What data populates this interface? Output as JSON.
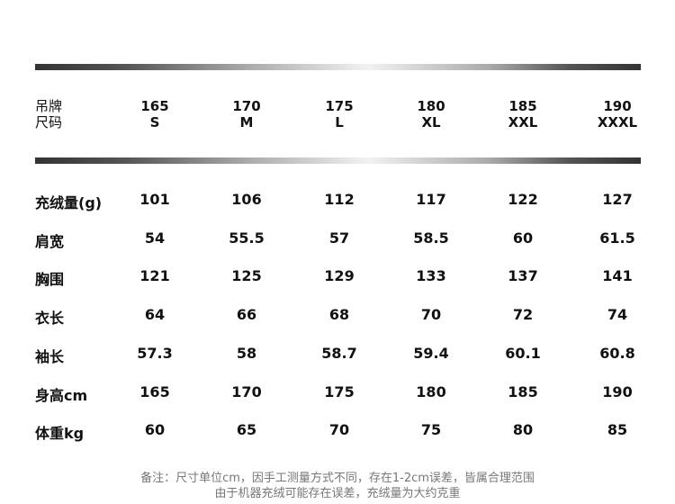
{
  "header": {
    "label_lines": [
      "吊牌",
      "尺码"
    ],
    "sizes": [
      {
        "tag": "165",
        "size": "S"
      },
      {
        "tag": "170",
        "size": "M"
      },
      {
        "tag": "175",
        "size": "L"
      },
      {
        "tag": "180",
        "size": "XL"
      },
      {
        "tag": "185",
        "size": "XXL"
      },
      {
        "tag": "190",
        "size": "XXXL"
      }
    ]
  },
  "rows": [
    {
      "label": "充绒量(g)",
      "values": [
        "101",
        "106",
        "112",
        "117",
        "122",
        "127"
      ]
    },
    {
      "label": "肩宽",
      "values": [
        "54",
        "55.5",
        "57",
        "58.5",
        "60",
        "61.5"
      ]
    },
    {
      "label": "胸围",
      "values": [
        "121",
        "125",
        "129",
        "133",
        "137",
        "141"
      ]
    },
    {
      "label": "衣长",
      "values": [
        "64",
        "66",
        "68",
        "70",
        "72",
        "74"
      ]
    },
    {
      "label": "袖长",
      "values": [
        "57.3",
        "58",
        "58.7",
        "59.4",
        "60.1",
        "60.8"
      ]
    },
    {
      "label": "身高cm",
      "values": [
        "165",
        "170",
        "175",
        "180",
        "185",
        "190"
      ]
    },
    {
      "label": "体重kg",
      "values": [
        "60",
        "65",
        "70",
        "75",
        "80",
        "85"
      ]
    }
  ],
  "notes": [
    "备注：尺寸单位cm，因手工测量方式不同，存在1-2cm误差，皆属合理范围",
    "由于机器充绒可能存在误差，充绒量为大约克重"
  ]
}
